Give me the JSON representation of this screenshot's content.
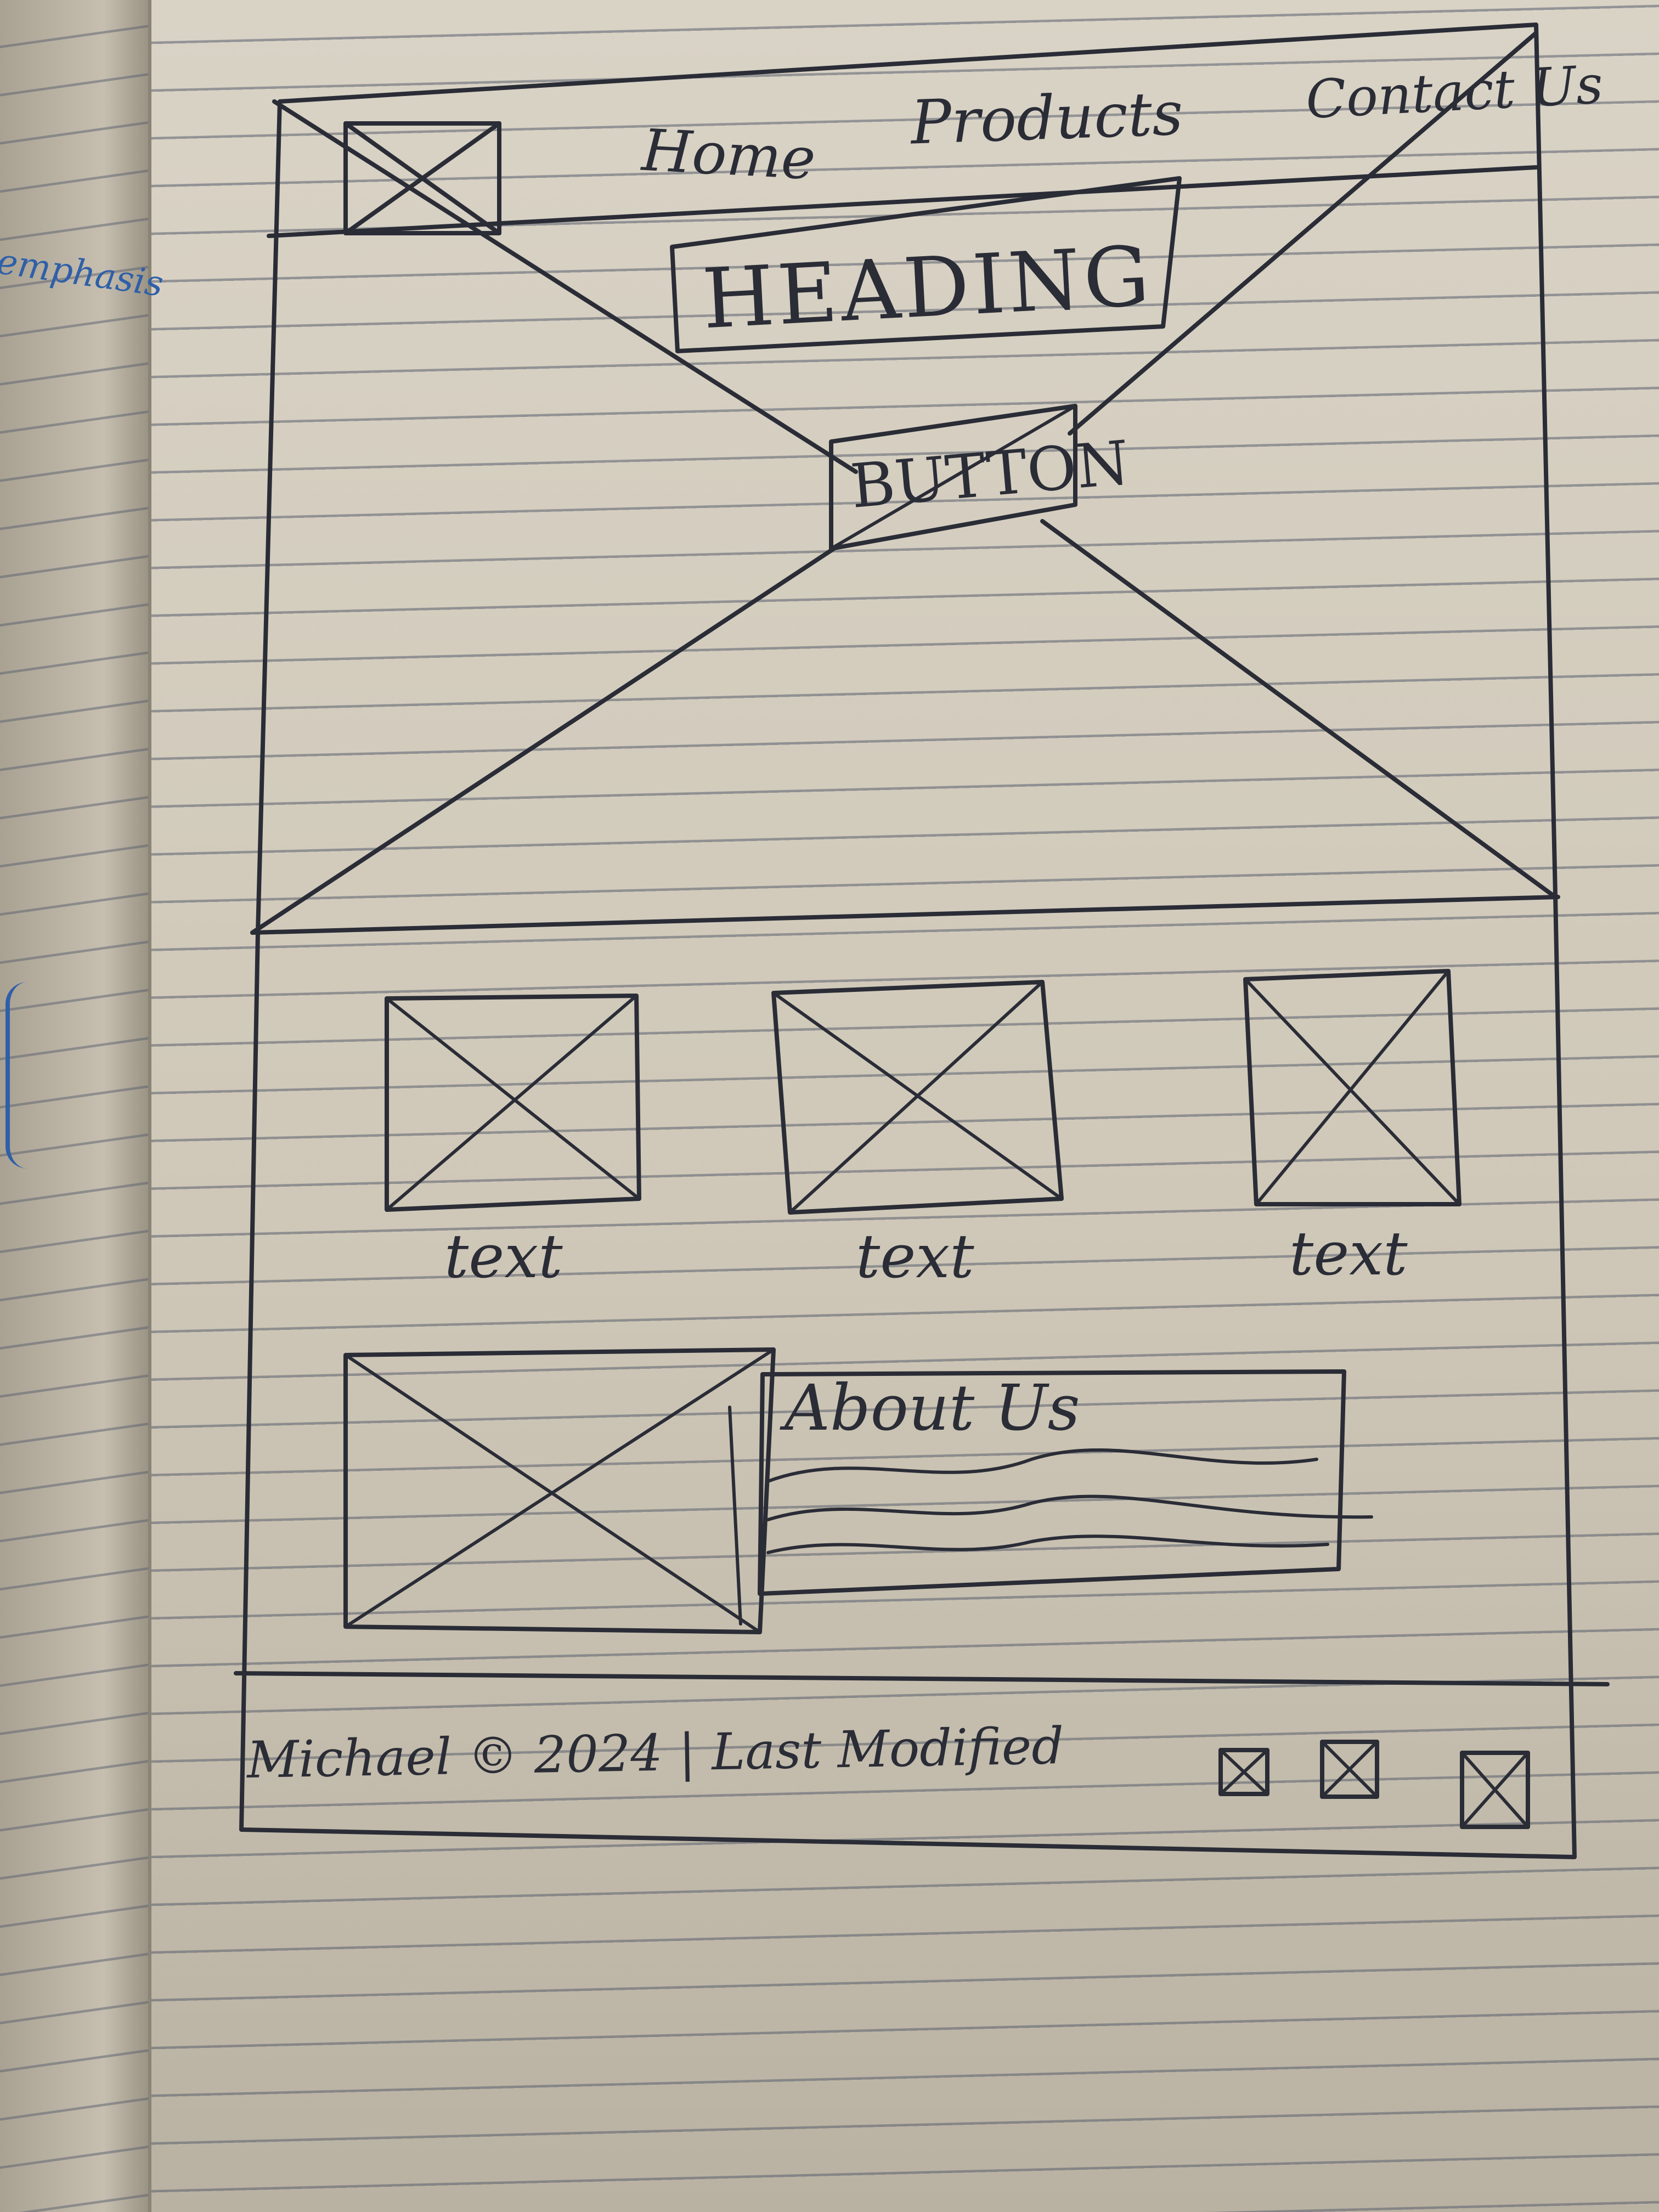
{
  "nav": {
    "home": "Home",
    "products": "Products",
    "contact": "Contact Us"
  },
  "hero": {
    "heading": "HEADING",
    "button": "BUTTON"
  },
  "features": [
    {
      "caption": "text"
    },
    {
      "caption": "text"
    },
    {
      "caption": "text"
    }
  ],
  "about": {
    "title": "About Us"
  },
  "footer": {
    "text": "Michael © 2024 | Last Modified"
  },
  "margin_note": "emphasis",
  "colors": {
    "ink": "#2a2c36",
    "margin_ink": "#2f5fa8",
    "paper": "#d4cdbf"
  }
}
